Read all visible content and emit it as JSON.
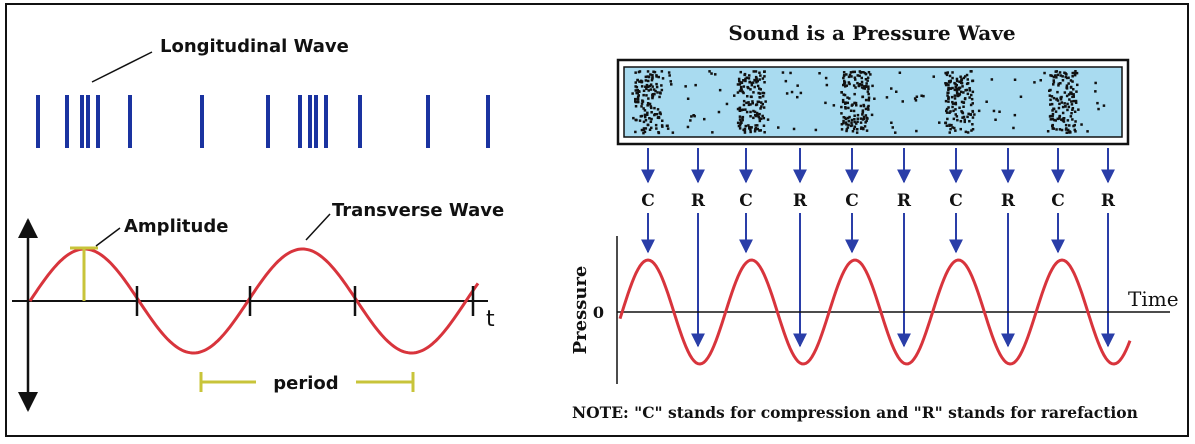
{
  "left_panel": {
    "longitudinal_label": "Longitudinal Wave",
    "transverse_label": "Transverse Wave",
    "amplitude_label": "Amplitude",
    "period_label": "period",
    "time_axis_label": "t"
  },
  "right_panel": {
    "title": "Sound is a Pressure Wave",
    "pressure_axis_label": "Pressure",
    "time_axis_label": "Time",
    "zero_label": "0",
    "arrow_labels": [
      "C",
      "R",
      "C",
      "R",
      "C",
      "R",
      "C",
      "R",
      "C",
      "R"
    ],
    "note": "NOTE: \"C\" stands for compression and \"R\" stands for rarefaction"
  },
  "colors": {
    "border": "#111111",
    "longitudinal_lines": "#1a33a0",
    "wave": "#d8343c",
    "amplitude_marker": "#c8c43a",
    "arrows": "#2a3ea8",
    "tube_fill": "#a9dbf0"
  }
}
